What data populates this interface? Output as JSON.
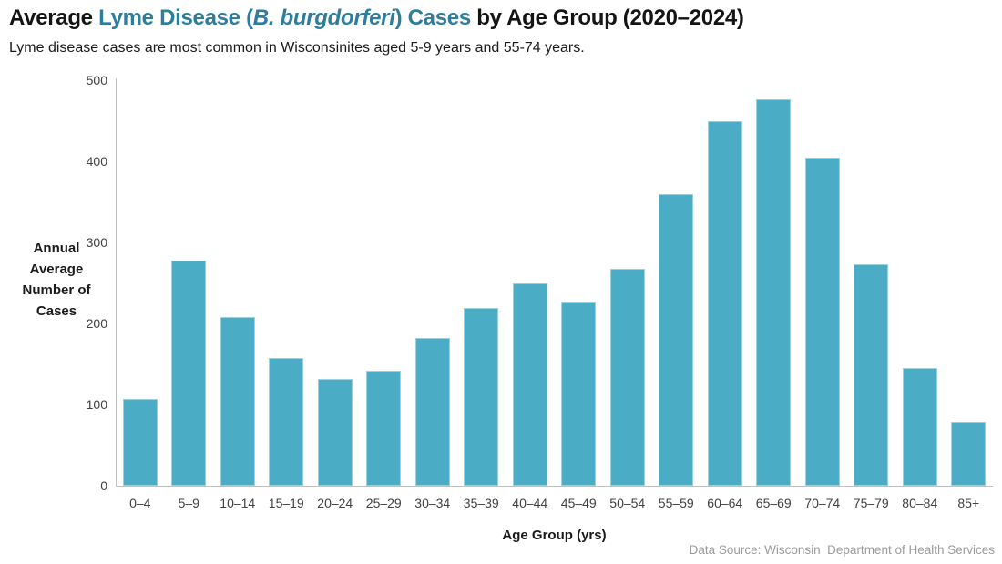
{
  "title": {
    "part1": "Average ",
    "part2_accent": "Lyme Disease (",
    "part3_accent_italic": "B. burgdorferi",
    "part4_accent": ") Cases",
    "part5": " by Age Group (2020–2024)"
  },
  "subtitle": "Lyme disease cases are most common in Wisconsinites aged 5-9 years and 55-74 years.",
  "footer": "Data Source: Wisconsin  Department of Health Services",
  "colors": {
    "bar_fill": "#4BACC6",
    "title_accent": "#2E7D9C",
    "axis_line": "#BFBFBF",
    "tick_text": "#404040",
    "footer_text": "#9B9B9B"
  },
  "chart_data": {
    "type": "bar",
    "title": "Average Lyme Disease (B. burgdorferi) Cases by Age Group (2020–2024)",
    "subtitle": "Lyme disease cases are most common in Wisconsinites aged 5-9 years and 55-74 years.",
    "xlabel": "Age Group (yrs)",
    "ylabel": "Annual Average Number of Cases",
    "ylabel_lines": [
      "Annual",
      "Average",
      "Number of",
      "Cases"
    ],
    "categories": [
      "0–4",
      "5–9",
      "10–14",
      "15–19",
      "20–24",
      "25–29",
      "30–34",
      "35–39",
      "40–44",
      "45–49",
      "50–54",
      "55–59",
      "60–64",
      "65–69",
      "70–74",
      "75–79",
      "80–84",
      "85+"
    ],
    "values": [
      107,
      277,
      208,
      157,
      132,
      142,
      182,
      219,
      250,
      227,
      267,
      360,
      449,
      476,
      405,
      273,
      145,
      79
    ],
    "ylim": [
      0,
      500
    ],
    "yticks": [
      0,
      100,
      200,
      300,
      400,
      500
    ],
    "grid": false,
    "legend": null,
    "bar_color": "#4BACC6",
    "source_note": "Data Source: Wisconsin  Department of Health Services"
  }
}
